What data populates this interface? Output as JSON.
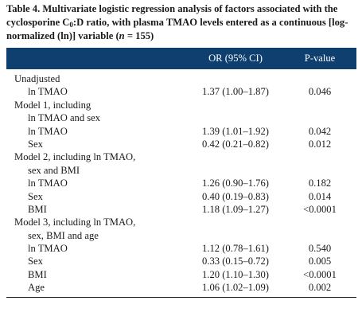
{
  "caption": {
    "lead": "Table 4. Multivariate logistic regression analysis of factors associated with the cyclosporine C",
    "sub": "0",
    "rest_a": ":D ratio, with plasma TMAO levels entered as a contin­uous [log-normalized (ln)] variable (",
    "n_var": "n",
    "rest_b": " = 155)"
  },
  "table": {
    "headers": {
      "factor": "",
      "or": "OR (95% CI)",
      "p": "P-value"
    },
    "rows": [
      {
        "factor": "Unadjusted",
        "or": "",
        "p": "",
        "indent": false
      },
      {
        "factor": "ln TMAO",
        "or": "1.37 (1.00–1.87)",
        "p": "0.046",
        "indent": true
      },
      {
        "factor": "Model 1, including",
        "or": "",
        "p": "",
        "indent": false
      },
      {
        "factor": "ln TMAO and sex",
        "or": "",
        "p": "",
        "indent": true
      },
      {
        "factor": "ln TMAO",
        "or": "1.39 (1.01–1.92)",
        "p": "0.042",
        "indent": true
      },
      {
        "factor": "Sex",
        "or": "0.42 (0.21–0.82)",
        "p": "0.012",
        "indent": true
      },
      {
        "factor": "Model 2, including ln TMAO,",
        "or": "",
        "p": "",
        "indent": false
      },
      {
        "factor": "sex and BMI",
        "or": "",
        "p": "",
        "indent": true
      },
      {
        "factor": "ln TMAO",
        "or": "1.26 (0.90–1.76)",
        "p": "0.182",
        "indent": true
      },
      {
        "factor": "Sex",
        "or": "0.40 (0.19–0.83)",
        "p": "0.014",
        "indent": true
      },
      {
        "factor": "BMI",
        "or": "1.18 (1.09–1.27)",
        "p": "<0.0001",
        "indent": true
      },
      {
        "factor": "Model 3, including ln TMAO,",
        "or": "",
        "p": "",
        "indent": false
      },
      {
        "factor": "sex, BMI and age",
        "or": "",
        "p": "",
        "indent": true
      },
      {
        "factor": "ln TMAO",
        "or": "1.12 (0.78–1.61)",
        "p": "0.540",
        "indent": true
      },
      {
        "factor": "Sex",
        "or": "0.33 (0.15–0.72)",
        "p": "0.005",
        "indent": true
      },
      {
        "factor": "BMI",
        "or": "1.20 (1.10–1.30)",
        "p": "<0.0001",
        "indent": true
      },
      {
        "factor": "Age",
        "or": "1.06 (1.02–1.09)",
        "p": "0.002",
        "indent": true
      }
    ]
  }
}
